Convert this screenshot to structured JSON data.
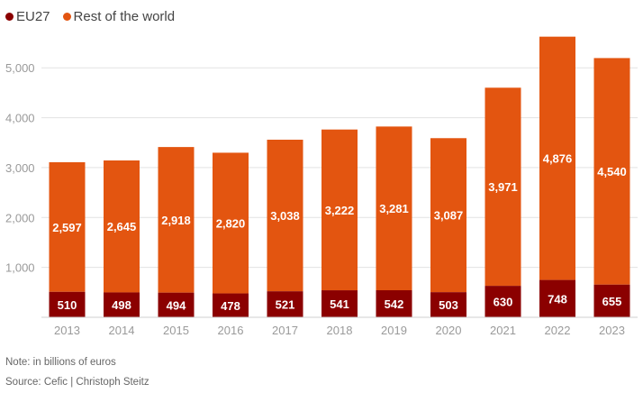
{
  "chart_data": {
    "type": "bar",
    "stacked": true,
    "categories": [
      "2013",
      "2014",
      "2015",
      "2016",
      "2017",
      "2018",
      "2019",
      "2020",
      "2021",
      "2022",
      "2023"
    ],
    "series": [
      {
        "name": "EU27",
        "color": "#8b0000",
        "values": [
          510,
          498,
          494,
          478,
          521,
          541,
          542,
          503,
          630,
          748,
          655
        ],
        "labels": [
          "510",
          "498",
          "494",
          "478",
          "521",
          "541",
          "542",
          "503",
          "630",
          "748",
          "655"
        ]
      },
      {
        "name": "Rest of the world",
        "color": "#e35510",
        "values": [
          2597,
          2645,
          2918,
          2820,
          3038,
          3222,
          3281,
          3087,
          3971,
          4876,
          4540
        ],
        "labels": [
          "2,597",
          "2,645",
          "2,918",
          "2,820",
          "3,038",
          "3,222",
          "3,281",
          "3,087",
          "3,971",
          "4,876",
          "4,540"
        ]
      }
    ],
    "ylim": [
      0,
      5600
    ],
    "yticks": [
      1000,
      2000,
      3000,
      4000,
      5000
    ],
    "ytick_labels": [
      "1,000",
      "2,000",
      "3,000",
      "4,000",
      "5,000"
    ],
    "grid": true,
    "legend": "top-left"
  },
  "legend": {
    "eu": "EU27",
    "row": "Rest of the world"
  },
  "colors": {
    "eu": "#8b0000",
    "row": "#e35510"
  },
  "footer": {
    "note": "Note: in billions of euros",
    "source": "Source: Cefic | Christoph Steitz"
  }
}
